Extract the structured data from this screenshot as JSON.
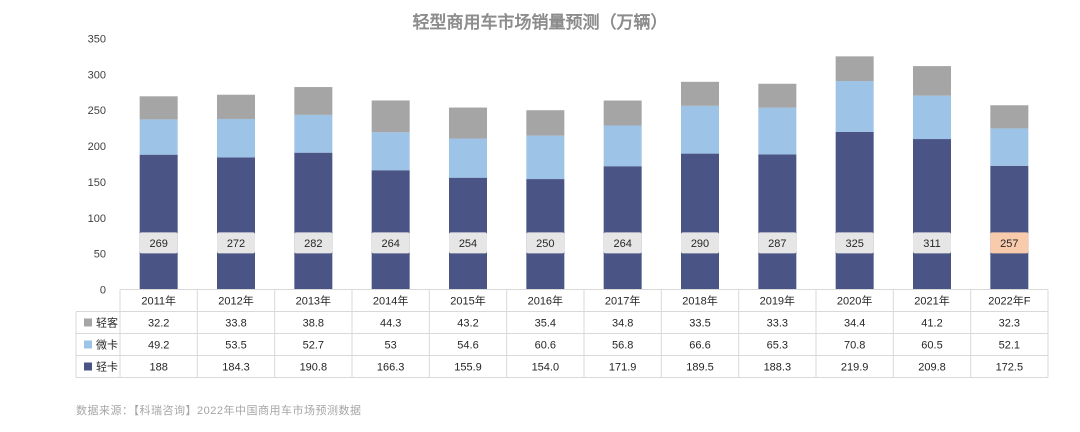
{
  "chart_data": {
    "type": "bar",
    "stacked": true,
    "title": "轻型商用车市场销量预测（万辆）",
    "categories": [
      "2011年",
      "2012年",
      "2013年",
      "2014年",
      "2015年",
      "2016年",
      "2017年",
      "2018年",
      "2019年",
      "2020年",
      "2021年",
      "2022年F"
    ],
    "series": [
      {
        "name": "轻卡",
        "color": "#4a5586",
        "values": [
          188,
          184.3,
          190.8,
          166.3,
          155.9,
          154.0,
          171.9,
          189.5,
          188.3,
          219.9,
          209.8,
          172.5
        ],
        "labels": [
          "188",
          "184.3",
          "190.8",
          "166.3",
          "155.9",
          "154.0",
          "171.9",
          "189.5",
          "188.3",
          "219.9",
          "209.8",
          "172.5"
        ]
      },
      {
        "name": "微卡",
        "color": "#9dc3e6",
        "values": [
          49.2,
          53.5,
          52.7,
          53,
          54.6,
          60.6,
          56.8,
          66.6,
          65.3,
          70.8,
          60.5,
          52.1
        ],
        "labels": [
          "49.2",
          "53.5",
          "52.7",
          "53",
          "54.6",
          "60.6",
          "56.8",
          "66.6",
          "65.3",
          "70.8",
          "60.5",
          "52.1"
        ]
      },
      {
        "name": "轻客",
        "color": "#a5a5a5",
        "values": [
          32.2,
          33.8,
          38.8,
          44.3,
          43.2,
          35.4,
          34.8,
          33.5,
          33.3,
          34.4,
          41.2,
          32.3
        ],
        "labels": [
          "32.2",
          "33.8",
          "38.8",
          "44.3",
          "43.2",
          "35.4",
          "34.8",
          "33.5",
          "33.3",
          "34.4",
          "41.2",
          "32.3"
        ]
      }
    ],
    "totals": [
      "269",
      "272",
      "282",
      "264",
      "254",
      "250",
      "264",
      "290",
      "287",
      "325",
      "311",
      "257"
    ],
    "highlight_total_color": "#f8cbad",
    "total_box_color": "#e7e6e6",
    "ylim": [
      0,
      350
    ],
    "yticks": [
      0,
      50,
      100,
      150,
      200,
      250,
      300,
      350
    ],
    "grid": false,
    "legend": "data-table-left"
  },
  "table_row_order": [
    2,
    1,
    0
  ],
  "source_text": "数据来源：【科瑞咨询】2022年中国商用车市场预测数据"
}
